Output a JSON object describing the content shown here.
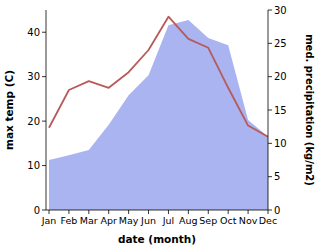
{
  "chart_data": {
    "type": "line",
    "x_label": "date (month)",
    "y_label": "max temp (C)",
    "y2_label": "med. precipitation (kg/m2)",
    "categories": [
      "Jan",
      "Feb",
      "Mar",
      "Apr",
      "May",
      "Jun",
      "Jul",
      "Aug",
      "Sep",
      "Oct",
      "Nov",
      "Dec"
    ],
    "ylim": [
      0,
      45
    ],
    "yticks": [
      0,
      10,
      20,
      30,
      40
    ],
    "y2lim": [
      0,
      30
    ],
    "y2ticks": [
      0,
      5,
      10,
      15,
      20,
      25,
      30
    ],
    "series": [
      {
        "type": "area",
        "axis": "y2",
        "color": "#a9b4f0",
        "values": [
          7.5,
          8.2,
          9,
          12.8,
          17.2,
          20.2,
          27.7,
          28.5,
          25.8,
          24.7,
          13.5,
          11
        ]
      },
      {
        "type": "line",
        "color": "#b85a5a",
        "values": [
          18.5,
          27,
          29,
          27.5,
          31,
          36,
          43.5,
          38.5,
          36.5,
          27.5,
          19,
          16.5
        ]
      }
    ]
  }
}
